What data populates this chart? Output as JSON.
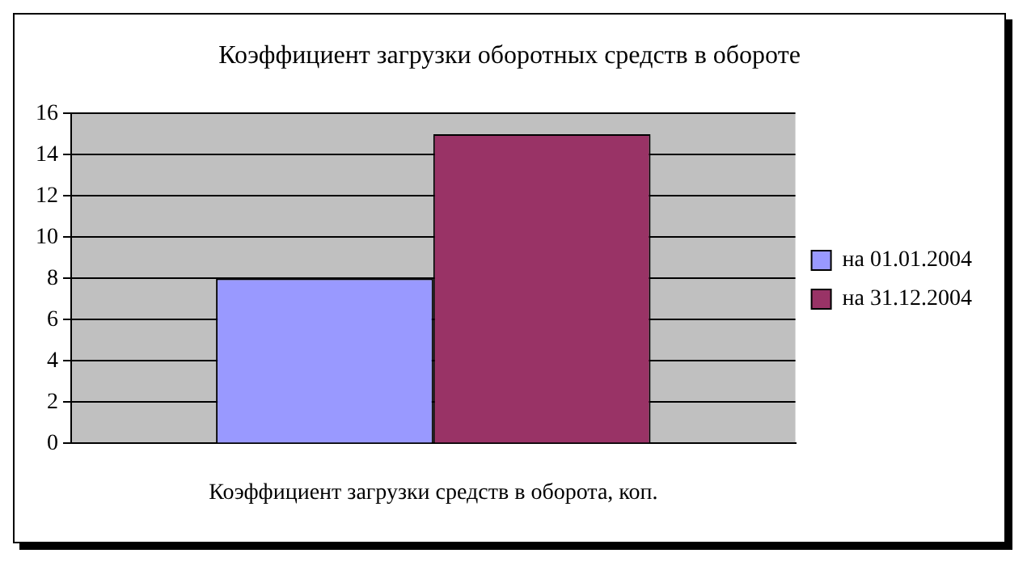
{
  "chart_data": {
    "type": "bar",
    "title": "Коэффициент загрузки оборотных средств в обороте",
    "categories": [
      "Коэффициент загрузки средств в оборота, коп."
    ],
    "series": [
      {
        "name": "на 01.01.2004",
        "color": "#9999ff",
        "values": [
          8
        ]
      },
      {
        "name": "на 31.12.2004",
        "color": "#993366",
        "values": [
          15
        ]
      }
    ],
    "ylim": [
      0,
      16
    ],
    "yticks": [
      0,
      2,
      4,
      6,
      8,
      10,
      12,
      14,
      16
    ],
    "grid": "y",
    "legend": "right"
  }
}
